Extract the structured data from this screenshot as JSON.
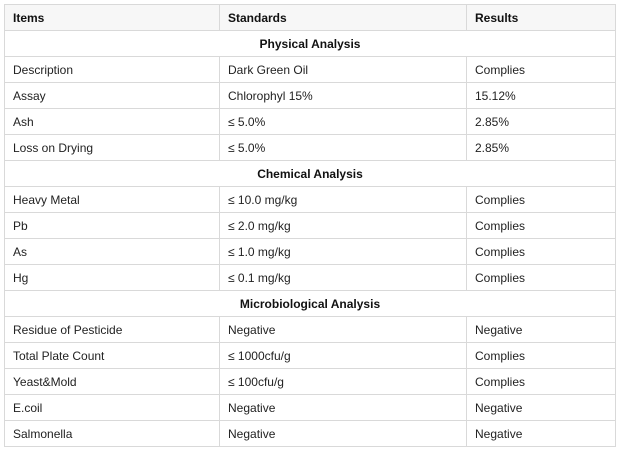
{
  "table": {
    "headers": [
      "Items",
      "Standards",
      "Results"
    ],
    "sections": [
      {
        "title": "Physical Analysis",
        "rows": [
          [
            "Description",
            "Dark Green Oil",
            "Complies"
          ],
          [
            "Assay",
            "Chlorophyl 15%",
            "15.12%"
          ],
          [
            "Ash",
            "≤ 5.0%",
            "2.85%"
          ],
          [
            "Loss on Drying",
            "≤ 5.0%",
            "2.85%"
          ]
        ]
      },
      {
        "title": "Chemical Analysis",
        "rows": [
          [
            "Heavy Metal",
            "≤ 10.0 mg/kg",
            "Complies"
          ],
          [
            "Pb",
            "≤ 2.0 mg/kg",
            "Complies"
          ],
          [
            "As",
            "≤ 1.0 mg/kg",
            "Complies"
          ],
          [
            "Hg",
            "≤ 0.1 mg/kg",
            "Complies"
          ]
        ]
      },
      {
        "title": "Microbiological Analysis",
        "rows": [
          [
            "Residue of Pesticide",
            "Negative",
            "Negative"
          ],
          [
            "Total Plate Count",
            "≤ 1000cfu/g",
            "Complies"
          ],
          [
            "Yeast&Mold",
            "≤ 100cfu/g",
            "Complies"
          ],
          [
            "E.coil",
            "Negative",
            "Negative"
          ],
          [
            "Salmonella",
            "Negative",
            "Negative"
          ]
        ]
      }
    ]
  }
}
